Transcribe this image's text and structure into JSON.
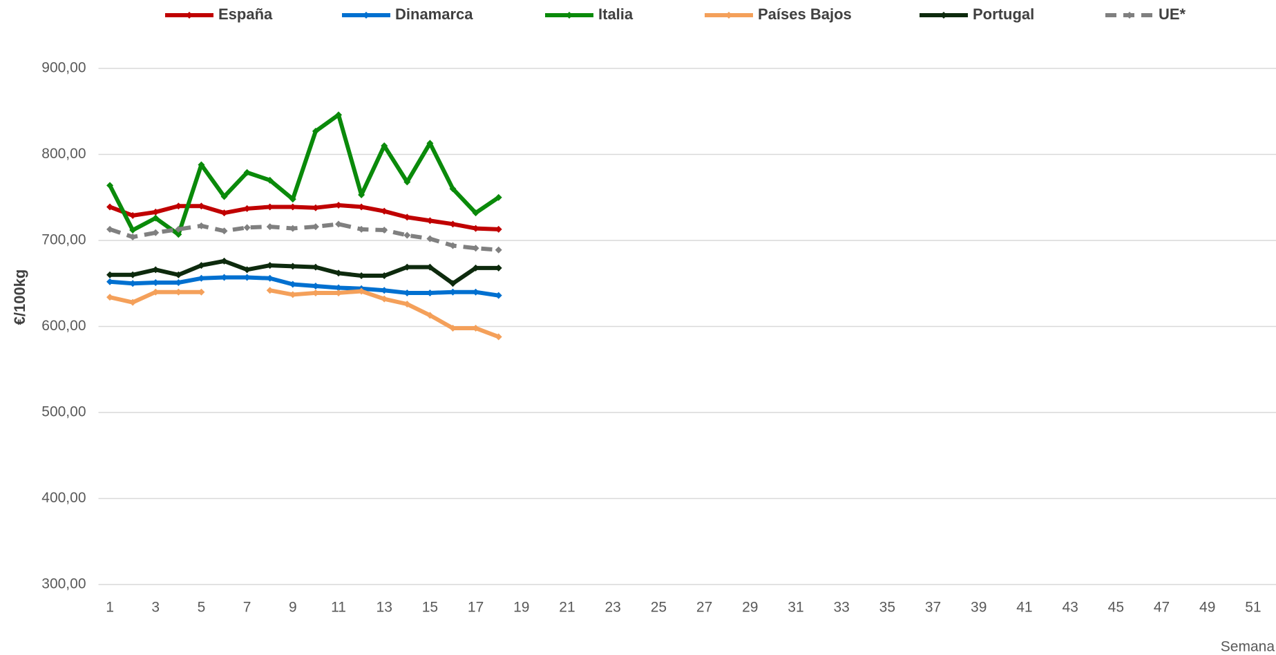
{
  "chart_data": {
    "type": "line",
    "x": [
      1,
      2,
      3,
      4,
      5,
      6,
      7,
      8,
      9,
      10,
      11,
      12,
      13,
      14,
      15,
      16,
      17,
      18
    ],
    "xlim": [
      0.5,
      52
    ],
    "xticks": [
      1,
      3,
      5,
      7,
      9,
      11,
      13,
      15,
      17,
      19,
      21,
      23,
      25,
      27,
      29,
      31,
      33,
      35,
      37,
      39,
      41,
      43,
      45,
      47,
      49,
      51
    ],
    "xlabel": "Semana",
    "ylabel": "€/100kg",
    "ylim": [
      300,
      900
    ],
    "yticks": [
      {
        "value": 300,
        "label": "300,00"
      },
      {
        "value": 400,
        "label": "400,00"
      },
      {
        "value": 500,
        "label": "500,00"
      },
      {
        "value": 600,
        "label": "600,00"
      },
      {
        "value": 700,
        "label": "700,00"
      },
      {
        "value": 800,
        "label": "800,00"
      },
      {
        "value": 900,
        "label": "900,00"
      }
    ],
    "grid": true,
    "legend": "top",
    "series": [
      {
        "name": "España",
        "color": "#c00000",
        "values": [
          739,
          729,
          733,
          740,
          740,
          732,
          737,
          739,
          739,
          738,
          741,
          739,
          734,
          727,
          723,
          719,
          714,
          713
        ]
      },
      {
        "name": "Dinamarca",
        "color": "#0070d0",
        "values": [
          652,
          650,
          651,
          651,
          656,
          657,
          657,
          656,
          649,
          647,
          645,
          644,
          642,
          639,
          639,
          640,
          640,
          636
        ]
      },
      {
        "name": "Italia",
        "color": "#0a8a0a",
        "values": [
          764,
          712,
          726,
          707,
          788,
          751,
          779,
          770,
          748,
          827,
          846,
          753,
          810,
          768,
          813,
          760,
          732,
          750
        ]
      },
      {
        "name": "Países Bajos",
        "color": "#f4a05a",
        "values": [
          634,
          628,
          640,
          640,
          640,
          null,
          null,
          642,
          637,
          639,
          639,
          641,
          632,
          626,
          613,
          598,
          598,
          588
        ]
      },
      {
        "name": "Portugal",
        "color": "#0d2a0d",
        "values": [
          660,
          660,
          666,
          660,
          671,
          676,
          666,
          671,
          670,
          669,
          662,
          659,
          659,
          669,
          669,
          650,
          668,
          668
        ]
      },
      {
        "name": "UE*",
        "color": "#808080",
        "dashed": true,
        "values": [
          713,
          704,
          709,
          713,
          717,
          711,
          715,
          716,
          714,
          716,
          719,
          713,
          712,
          706,
          702,
          694,
          691,
          689
        ]
      }
    ]
  }
}
